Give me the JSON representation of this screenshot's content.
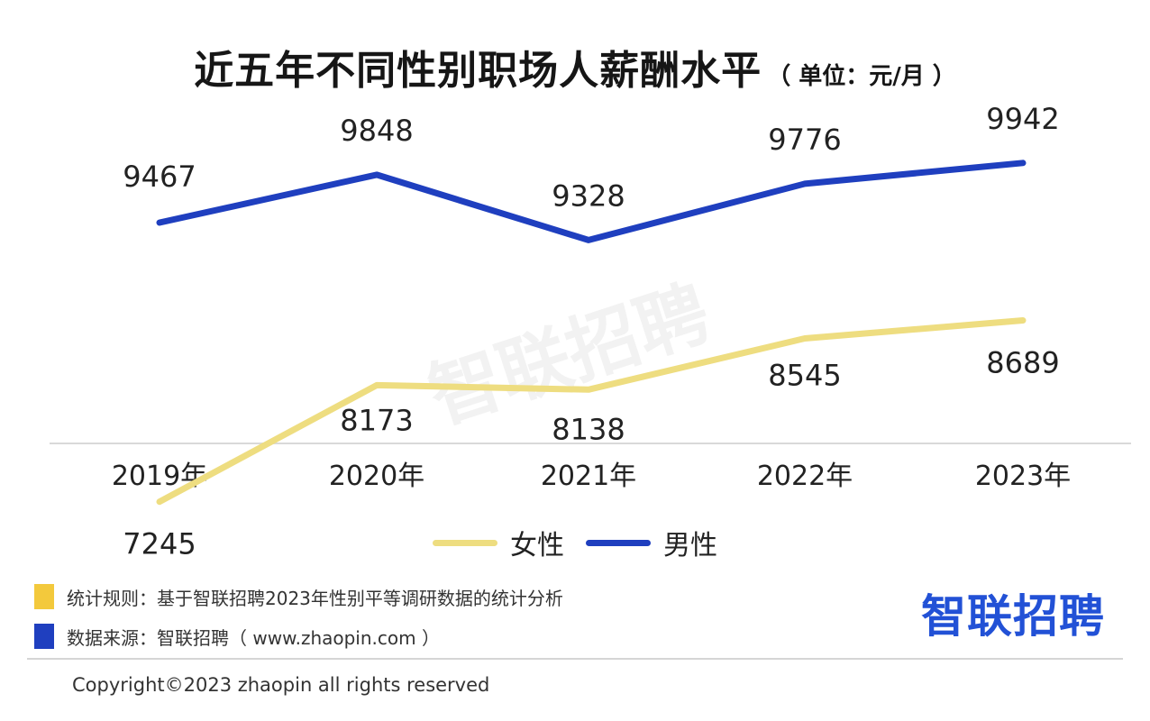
{
  "header": {
    "title": "近五年不同性别职场人薪酬水平",
    "unit": "（ 单位：元/月 ）"
  },
  "chart_data": {
    "type": "line",
    "categories": [
      "2019年",
      "2020年",
      "2021年",
      "2022年",
      "2023年"
    ],
    "series": [
      {
        "name": "女性",
        "color": "#eedd80",
        "values": [
          7245,
          8173,
          8138,
          8545,
          8689
        ]
      },
      {
        "name": "男性",
        "color": "#1f3fbf",
        "values": [
          9467,
          9848,
          9328,
          9776,
          9942
        ]
      }
    ],
    "xlabel": "",
    "ylabel": "",
    "grid": false,
    "legend_position": "bottom-center"
  },
  "legend": {
    "items": [
      {
        "label": "女性",
        "color": "#eedd80"
      },
      {
        "label": "男性",
        "color": "#1f3fbf"
      }
    ]
  },
  "notes": [
    {
      "text": "统计规则：基于智联招聘2023年性别平等调研数据的统计分析",
      "color": "#f3c93c"
    },
    {
      "text": "数据来源：智联招聘（ www.zhaopin.com ）",
      "color": "#1f3fbf"
    }
  ],
  "watermark": "智联招聘",
  "brand": {
    "logo": "智联招聘",
    "color": "#2251d6"
  },
  "footer": {
    "copyright": "Copyright©2023 zhaopin all rights reserved"
  }
}
